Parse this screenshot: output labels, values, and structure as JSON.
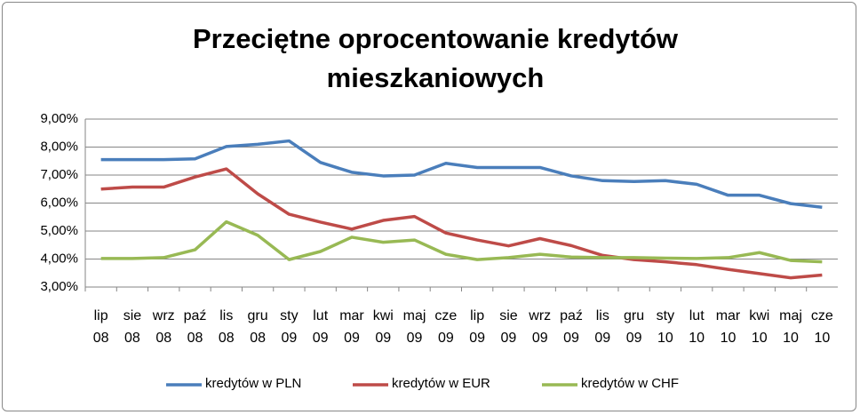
{
  "chart_data": {
    "type": "line",
    "title": "Przeciętne oprocentowanie kredytów mieszkaniowych",
    "categories": [
      "lip 08",
      "sie 08",
      "wrz 08",
      "paź 08",
      "lis 08",
      "gru 08",
      "sty 09",
      "lut 09",
      "mar 09",
      "kwi 09",
      "maj 09",
      "cze 09",
      "lip 09",
      "sie 09",
      "wrz 09",
      "paź 09",
      "lis 09",
      "gru 09",
      "sty 10",
      "lut 10",
      "mar 10",
      "kwi 10",
      "maj 10",
      "cze 10"
    ],
    "series": [
      {
        "name": "kredytów w PLN",
        "color": "#4a7ebb",
        "values": [
          7.55,
          7.55,
          7.55,
          7.58,
          8.02,
          8.1,
          8.22,
          7.45,
          7.1,
          6.97,
          7.0,
          7.42,
          7.27,
          7.27,
          7.27,
          6.97,
          6.8,
          6.77,
          6.8,
          6.67,
          6.28,
          6.28,
          5.98,
          5.85
        ]
      },
      {
        "name": "kredytów w EUR",
        "color": "#be4b48",
        "values": [
          6.5,
          6.57,
          6.57,
          6.93,
          7.22,
          6.33,
          5.6,
          5.32,
          5.07,
          5.38,
          5.52,
          4.93,
          4.68,
          4.47,
          4.73,
          4.48,
          4.13,
          3.98,
          3.9,
          3.8,
          3.63,
          3.48,
          3.33,
          3.43
        ]
      },
      {
        "name": "kredytów w CHF",
        "color": "#98b954",
        "values": [
          4.02,
          4.02,
          4.05,
          4.33,
          5.33,
          4.85,
          3.98,
          4.27,
          4.78,
          4.6,
          4.68,
          4.17,
          3.98,
          4.05,
          4.17,
          4.07,
          4.05,
          4.05,
          4.03,
          4.02,
          4.05,
          4.23,
          3.95,
          3.9
        ]
      }
    ],
    "ylim": [
      3,
      9
    ],
    "yticks": [
      {
        "value": 3,
        "label": "3,00%"
      },
      {
        "value": 4,
        "label": "4,00%"
      },
      {
        "value": 5,
        "label": "5,00%"
      },
      {
        "value": 6,
        "label": "6,00%"
      },
      {
        "value": 7,
        "label": "7,00%"
      },
      {
        "value": 8,
        "label": "8,00%"
      },
      {
        "value": 9,
        "label": "9,00%"
      }
    ],
    "grid": true,
    "legend": "bottom"
  }
}
